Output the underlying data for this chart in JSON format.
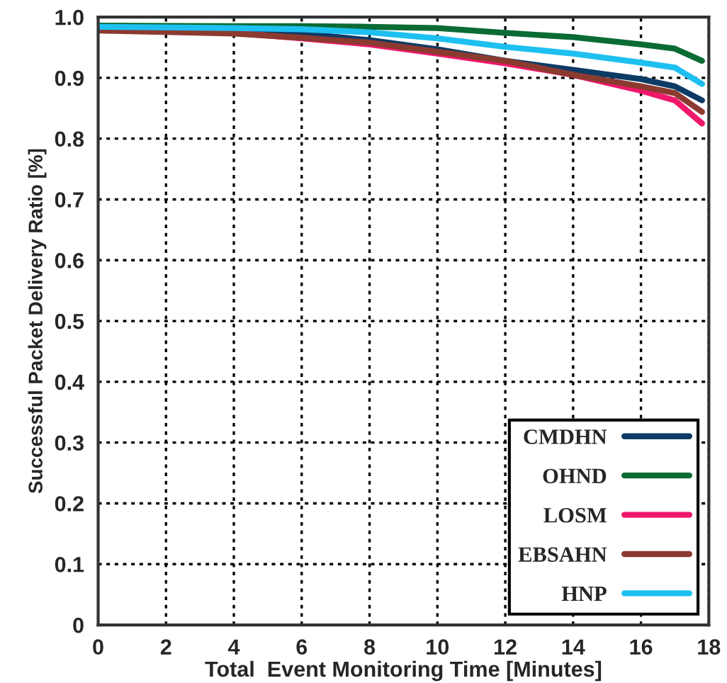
{
  "chart_data": {
    "type": "line",
    "xlabel": "Total  Event Monitoring Time [Minutes]",
    "ylabel": "Successful Packet Delivery Ratio [%]",
    "x": [
      0,
      4,
      6,
      8,
      10,
      12,
      14,
      16,
      17,
      17.8
    ],
    "series": [
      {
        "name": "CMDHN",
        "color": "#0d3b66",
        "values": [
          0.98,
          0.977,
          0.973,
          0.962,
          0.947,
          0.928,
          0.913,
          0.898,
          0.886,
          0.863
        ]
      },
      {
        "name": "OHND",
        "color": "#0b6b35",
        "values": [
          0.986,
          0.985,
          0.985,
          0.984,
          0.982,
          0.974,
          0.967,
          0.955,
          0.948,
          0.928
        ]
      },
      {
        "name": "LOSM",
        "color": "#f0176b",
        "values": [
          0.982,
          0.974,
          0.965,
          0.955,
          0.94,
          0.924,
          0.905,
          0.879,
          0.863,
          0.825
        ]
      },
      {
        "name": "EBSAHN",
        "color": "#8b3a2f",
        "values": [
          0.978,
          0.973,
          0.966,
          0.958,
          0.943,
          0.928,
          0.905,
          0.886,
          0.875,
          0.844
        ]
      },
      {
        "name": "HNP",
        "color": "#1ec0f0",
        "values": [
          0.984,
          0.982,
          0.98,
          0.975,
          0.965,
          0.951,
          0.94,
          0.925,
          0.917,
          0.89
        ]
      }
    ],
    "xlim": [
      0,
      18
    ],
    "ylim": [
      0,
      1.0
    ],
    "xticks": [
      0,
      2,
      4,
      6,
      8,
      10,
      12,
      14,
      16,
      18
    ],
    "yticks": [
      0,
      0.1,
      0.2,
      0.3,
      0.4,
      0.5,
      0.6,
      0.7,
      0.8,
      0.9,
      {
        "value": 1.0,
        "label": "1.0"
      }
    ],
    "grid": true,
    "legend": "bottom right",
    "marker": "none",
    "line_style": "solid"
  }
}
